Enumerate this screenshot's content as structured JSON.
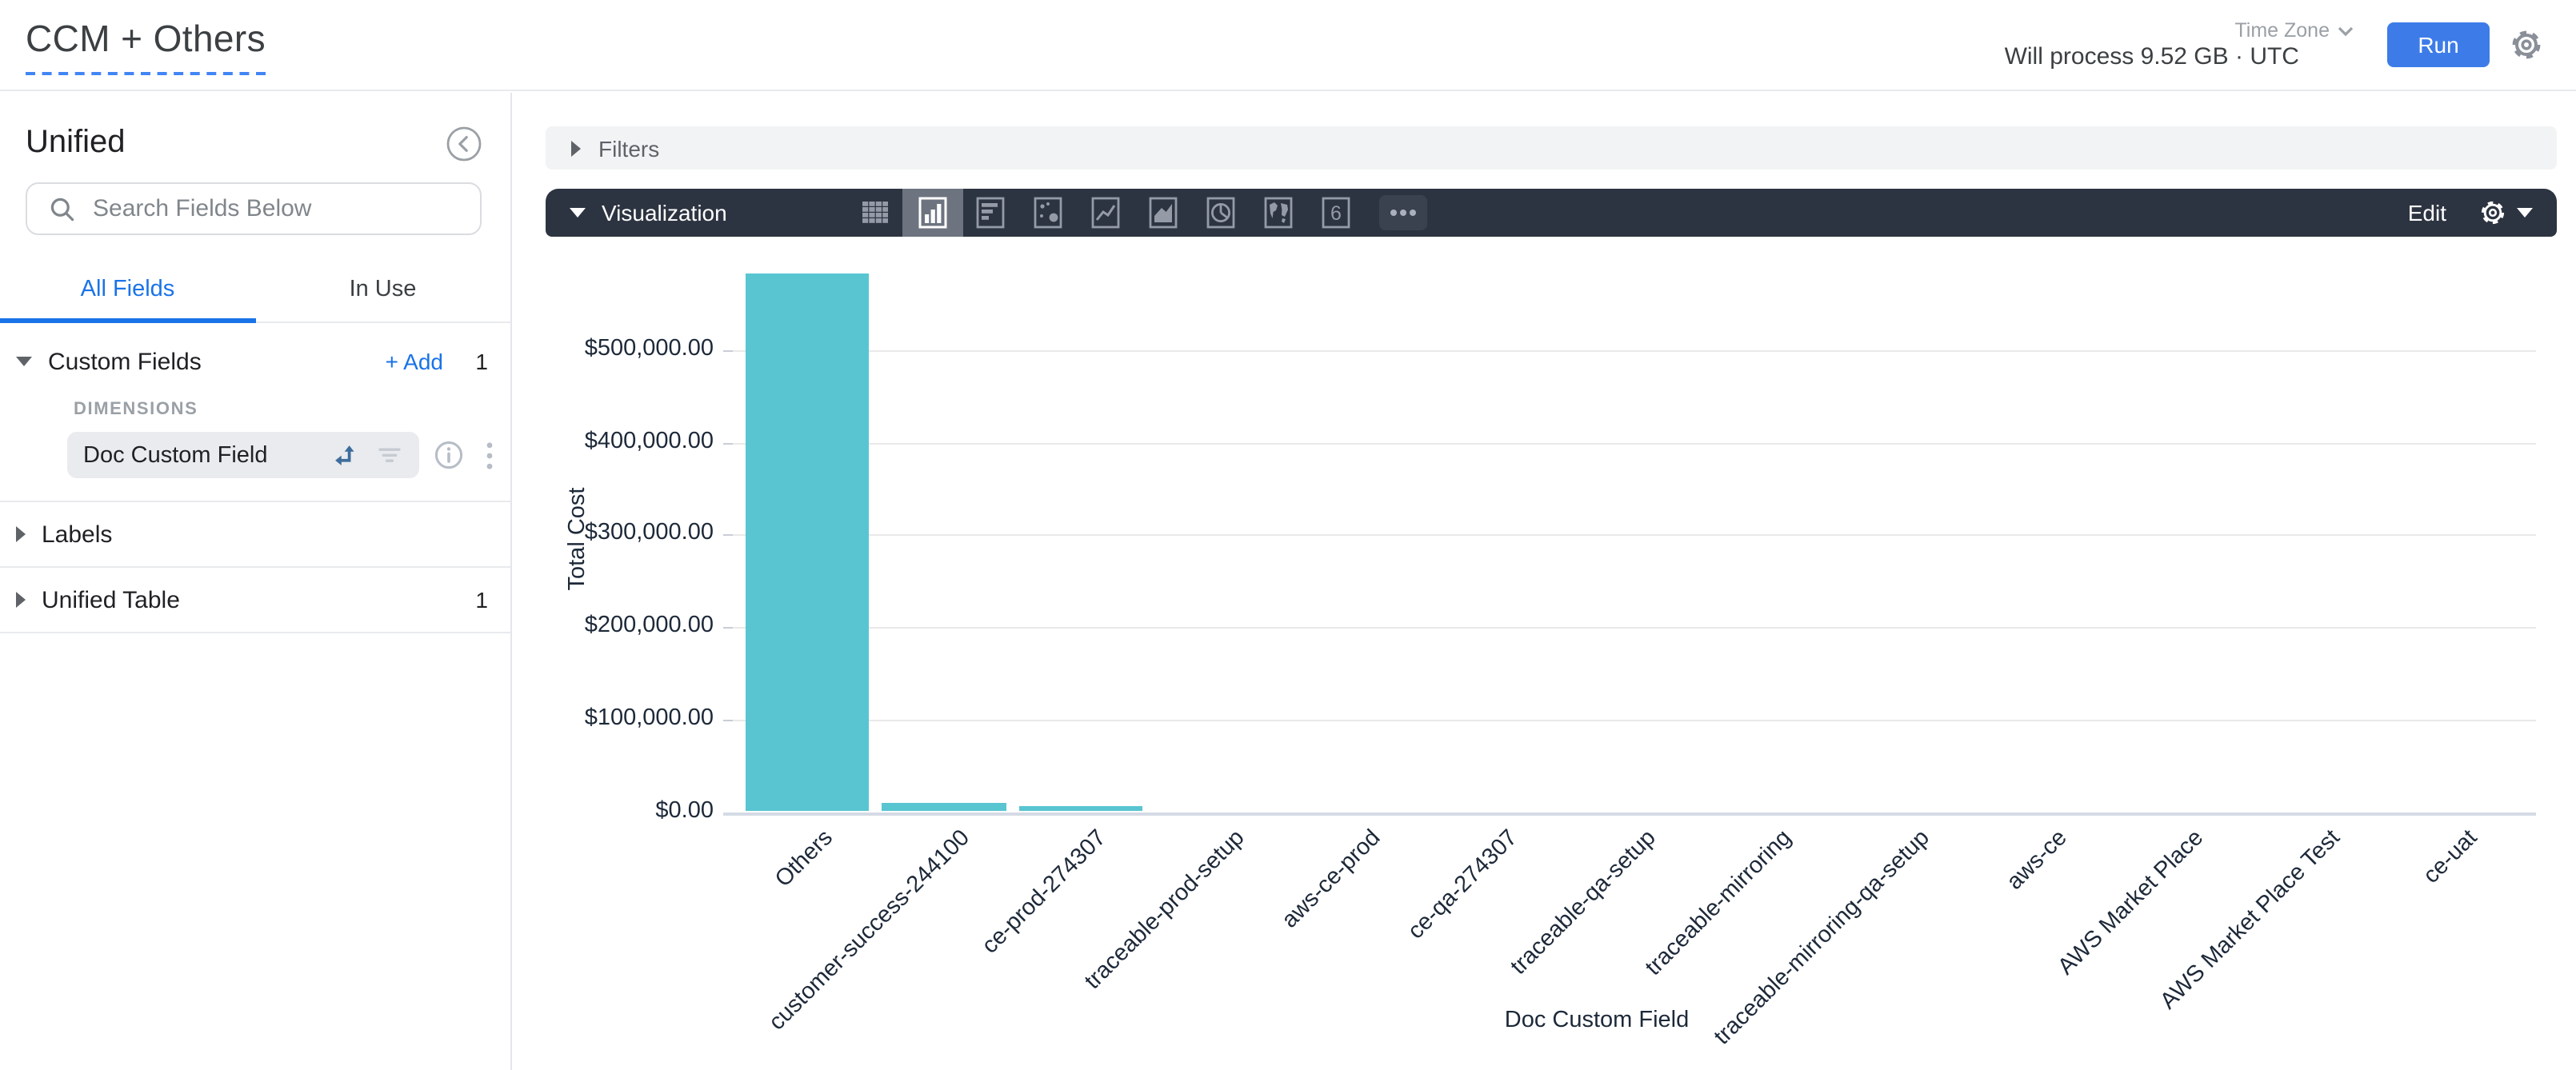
{
  "header": {
    "title": "CCM + Others",
    "time_zone_label": "Time Zone",
    "will_process": "Will process 9.52 GB · UTC",
    "run_label": "Run"
  },
  "sidebar": {
    "source_name": "Unified",
    "search_placeholder": "Search Fields Below",
    "tabs": [
      {
        "label": "All Fields",
        "active": true
      },
      {
        "label": "In Use",
        "active": false
      }
    ],
    "sections": [
      {
        "label": "Custom Fields",
        "expanded": true,
        "add_label": "+ Add",
        "count": "1",
        "group_label": "DIMENSIONS",
        "fields": [
          {
            "name": "Doc Custom Field",
            "icons": [
              "pivot-arrow",
              "sort-filter",
              "info",
              "kebab-menu"
            ]
          }
        ]
      },
      {
        "label": "Labels",
        "expanded": false,
        "count": ""
      },
      {
        "label": "Unified Table",
        "expanded": false,
        "count": "1"
      }
    ]
  },
  "filters": {
    "label": "Filters"
  },
  "visualization": {
    "label": "Visualization",
    "edit_label": "Edit",
    "chart_types": [
      "table",
      "column-chart",
      "bar-chart",
      "scatter-chart",
      "line-chart",
      "area-chart",
      "pie-chart",
      "geo-map",
      "scorecard",
      "more"
    ],
    "selected_type": "column-chart"
  },
  "colors": {
    "accent_blue": "#1a73e8",
    "run_button_blue": "#3d7ce8",
    "toolbar_dark": "#2d3441",
    "bar_teal": "#58c5d1"
  },
  "chart_data": {
    "type": "bar",
    "title": "",
    "xlabel": "Doc Custom Field",
    "ylabel": "Total Cost",
    "categories": [
      "Others",
      "customer-success-244100",
      "ce-prod-274307",
      "traceable-prod-setup",
      "aws-ce-prod",
      "ce-qa-274307",
      "traceable-qa-setup",
      "traceable-mirroring",
      "traceable-mirroring-qa-setup",
      "aws-ce",
      "AWS Market Place",
      "AWS Market Place Test",
      "ce-uat"
    ],
    "values": [
      584000,
      9500,
      6000,
      0,
      0,
      0,
      0,
      0,
      0,
      0,
      0,
      0,
      0
    ],
    "yticks": [
      {
        "label": "$0.00",
        "value": 0
      },
      {
        "label": "$100,000.00",
        "value": 100000
      },
      {
        "label": "$200,000.00",
        "value": 200000
      },
      {
        "label": "$300,000.00",
        "value": 300000
      },
      {
        "label": "$400,000.00",
        "value": 400000
      },
      {
        "label": "$500,000.00",
        "value": 500000
      }
    ],
    "ylim": [
      0,
      590000
    ],
    "grid": true,
    "legend": "none",
    "bar_color": "#58c5d1",
    "x_label_rotation": 45
  }
}
